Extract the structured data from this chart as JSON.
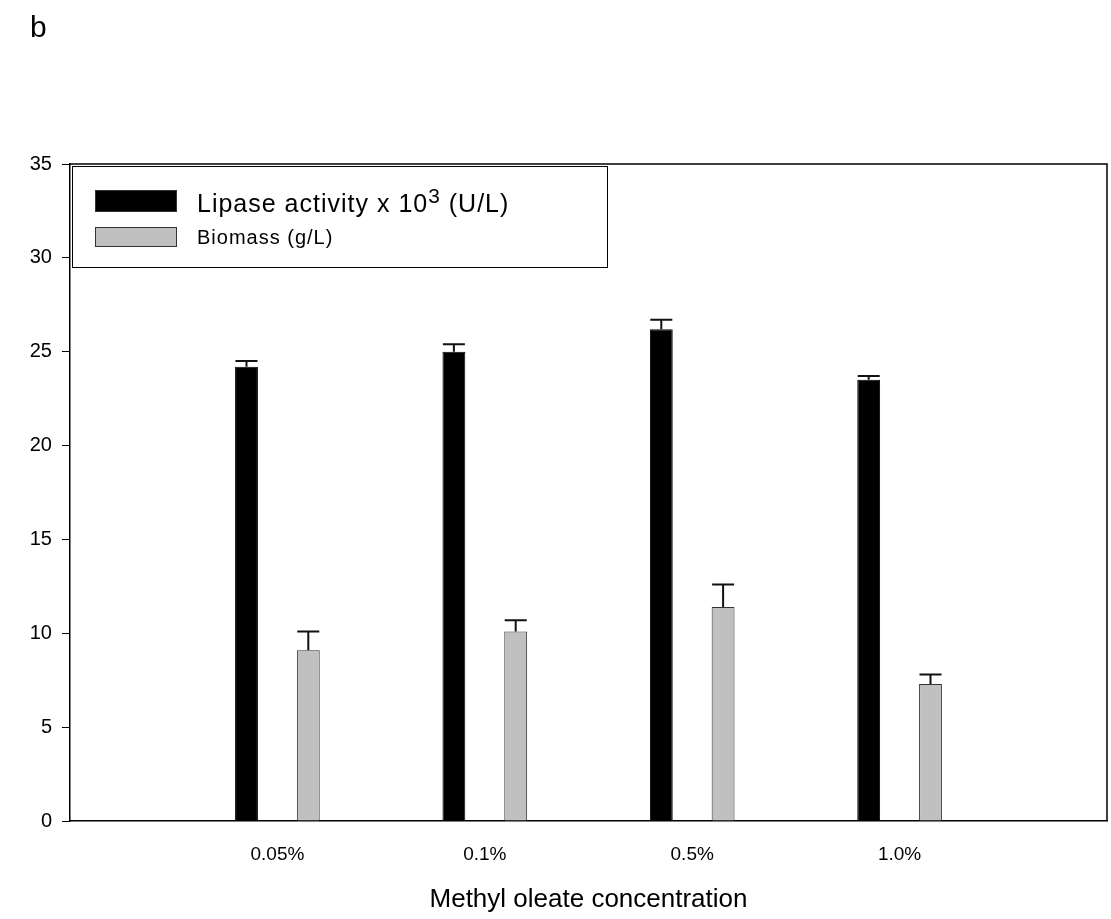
{
  "chart_data": {
    "type": "bar",
    "title": "b",
    "xlabel": "Methyl oleate concentration",
    "categories": [
      "0.05%",
      "0.1%",
      "0.5%",
      "1.0%"
    ],
    "series": [
      {
        "name": "Lipase activity x 10$^{3}$ (U/L)",
        "color": "#000000",
        "values": [
          24.2,
          25.0,
          26.2,
          23.5
        ],
        "errors": [
          0.3,
          0.4,
          0.5,
          0.2
        ]
      },
      {
        "name": "Biomass (g/L)",
        "color": "#c0c0c0",
        "values": [
          9.1,
          10.1,
          11.4,
          7.3
        ],
        "errors": [
          1.0,
          0.6,
          1.2,
          0.5
        ]
      }
    ],
    "ylim": [
      0,
      35
    ],
    "yticks": [
      0,
      5,
      10,
      15,
      20,
      25,
      30,
      35
    ],
    "grid": false,
    "legend": "top left"
  }
}
